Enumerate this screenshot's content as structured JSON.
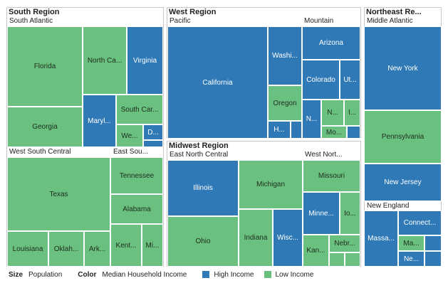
{
  "chart_data": {
    "type": "treemap",
    "size_measure": "Population",
    "color_measure": "Median Household Income",
    "colors": {
      "High Income": "#2f79b7",
      "Low Income": "#6ac07f"
    },
    "legend_position": "bottom-left",
    "legend": {
      "size_label": "Size",
      "size_value": "Population",
      "color_label": "Color",
      "color_value": "Median Household Income",
      "items": [
        {
          "label": "High Income",
          "color": "#2f79b7"
        },
        {
          "label": "Low Income",
          "color": "#6ac07f"
        }
      ]
    },
    "regions": [
      {
        "name": "South Region",
        "divisions": [
          {
            "name": "South Atlantic",
            "states": [
              {
                "label": "Florida",
                "income": "Low Income"
              },
              {
                "label": "Georgia",
                "income": "Low Income"
              },
              {
                "label": "North Ca...",
                "income": "Low Income"
              },
              {
                "label": "Virginia",
                "income": "High Income"
              },
              {
                "label": "Maryl...",
                "income": "High Income"
              },
              {
                "label": "South Car...",
                "income": "Low Income"
              },
              {
                "label": "We...",
                "income": "Low Income"
              },
              {
                "label": "D...",
                "income": "High Income"
              },
              {
                "label": "",
                "income": "High Income"
              }
            ]
          },
          {
            "name": "West South Central",
            "states": [
              {
                "label": "Texas",
                "income": "Low Income"
              },
              {
                "label": "Louisiana",
                "income": "Low Income"
              },
              {
                "label": "Oklah...",
                "income": "Low Income"
              },
              {
                "label": "Ark...",
                "income": "Low Income"
              }
            ]
          },
          {
            "name": "East Sou...",
            "states": [
              {
                "label": "Tennessee",
                "income": "Low Income"
              },
              {
                "label": "Alabama",
                "income": "Low Income"
              },
              {
                "label": "Kent...",
                "income": "Low Income"
              },
              {
                "label": "Mi...",
                "income": "Low Income"
              }
            ]
          }
        ]
      },
      {
        "name": "West Region",
        "divisions": [
          {
            "name": "Pacific",
            "states": [
              {
                "label": "California",
                "income": "High Income"
              },
              {
                "label": "Washi...",
                "income": "High Income"
              },
              {
                "label": "Oregon",
                "income": "Low Income"
              },
              {
                "label": "H...",
                "income": "High Income"
              },
              {
                "label": "",
                "income": "High Income"
              }
            ]
          },
          {
            "name": "Mountain",
            "states": [
              {
                "label": "Arizona",
                "income": "High Income"
              },
              {
                "label": "Colorado",
                "income": "High Income"
              },
              {
                "label": "Ut...",
                "income": "High Income"
              },
              {
                "label": "N...",
                "income": "High Income"
              },
              {
                "label": "N...",
                "income": "Low Income"
              },
              {
                "label": "I...",
                "income": "Low Income"
              },
              {
                "label": "Mo...",
                "income": "Low Income"
              },
              {
                "label": "",
                "income": "High Income"
              }
            ]
          }
        ]
      },
      {
        "name": "Midwest Region",
        "divisions": [
          {
            "name": "East North Central",
            "states": [
              {
                "label": "Illinois",
                "income": "High Income"
              },
              {
                "label": "Ohio",
                "income": "Low Income"
              },
              {
                "label": "Michigan",
                "income": "Low Income"
              },
              {
                "label": "Indiana",
                "income": "Low Income"
              },
              {
                "label": "Wisc...",
                "income": "High Income"
              }
            ]
          },
          {
            "name": "West Nort...",
            "states": [
              {
                "label": "Missouri",
                "income": "Low Income"
              },
              {
                "label": "Minne...",
                "income": "High Income"
              },
              {
                "label": "Io...",
                "income": "Low Income"
              },
              {
                "label": "Kan...",
                "income": "Low Income"
              },
              {
                "label": "Nebr...",
                "income": "Low Income"
              },
              {
                "label": "",
                "income": "Low Income"
              },
              {
                "label": "",
                "income": "Low Income"
              }
            ]
          }
        ]
      },
      {
        "name": "Northeast Re...",
        "divisions": [
          {
            "name": "Middle Atlantic",
            "states": [
              {
                "label": "New York",
                "income": "High Income"
              },
              {
                "label": "Pennsylvania",
                "income": "Low Income"
              },
              {
                "label": "New Jersey",
                "income": "High Income"
              }
            ]
          },
          {
            "name": "New England",
            "states": [
              {
                "label": "Massa...",
                "income": "High Income"
              },
              {
                "label": "Connect...",
                "income": "High Income"
              },
              {
                "label": "Ma...",
                "income": "Low Income"
              },
              {
                "label": "Ne...",
                "income": "High Income"
              },
              {
                "label": "",
                "income": "High Income"
              },
              {
                "label": "",
                "income": "High Income"
              }
            ]
          }
        ]
      }
    ]
  }
}
